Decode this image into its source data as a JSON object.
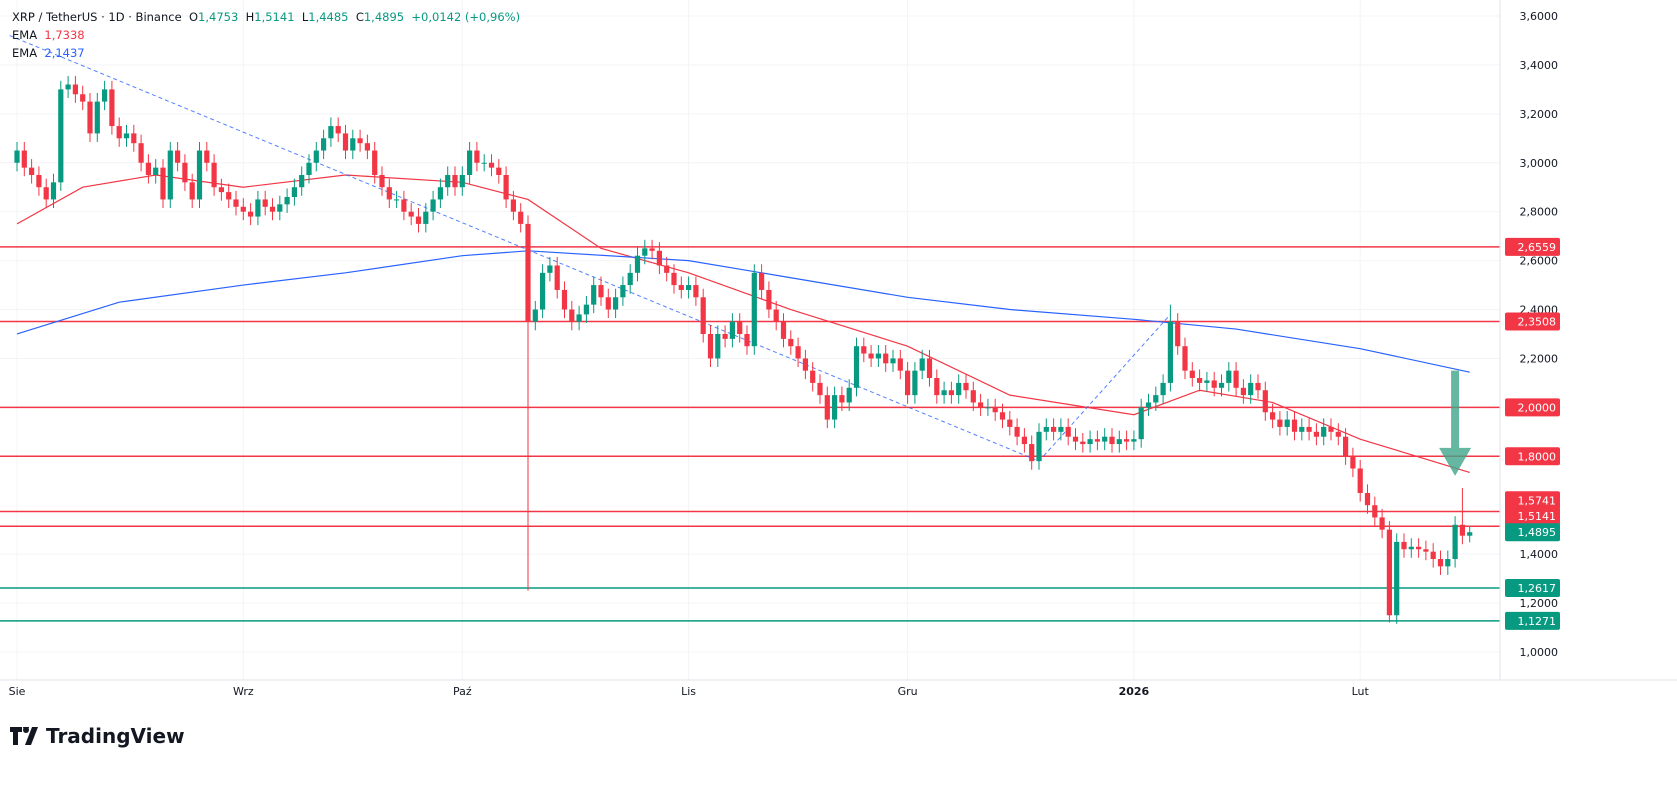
{
  "header": {
    "symbol": "XRP / TetherUS · 1D · Binance",
    "o_label": "O",
    "o": "1,4753",
    "h_label": "H",
    "h": "1,5141",
    "l_label": "L",
    "l": "1,4485",
    "c_label": "C",
    "c": "1,4895",
    "change": "+0,0142 (+0,96%)",
    "ema1_label": "EMA",
    "ema1_value": "1,7338",
    "ema2_label": "EMA",
    "ema2_value": "2,1437"
  },
  "branding": {
    "logo_text": "TradingView"
  },
  "colors": {
    "up": "#089981",
    "down": "#f23645",
    "ema_fast": "#f23645",
    "ema_slow": "#2962ff",
    "resistance": "#f23645",
    "support": "#089981",
    "trendline": "#2962ff",
    "arrow": "#3fa58a"
  },
  "chart_data": {
    "type": "candlestick",
    "start_date": "2025-08-01",
    "ylim": [
      1.0,
      3.6
    ],
    "y_ticks": [
      "3,6000",
      "3,4000",
      "3,2000",
      "3,0000",
      "2,8000",
      "2,6000",
      "2,4000",
      "2,2000",
      "1,4000",
      "1,2000",
      "1,0000"
    ],
    "y_tick_values": [
      3.6,
      3.4,
      3.2,
      3.0,
      2.8,
      2.6,
      2.4,
      2.2,
      1.4,
      1.2,
      1.0
    ],
    "x_ticks": [
      {
        "label": "Sie",
        "date": "2025-08-01"
      },
      {
        "label": "Wrz",
        "date": "2025-09-01"
      },
      {
        "label": "Paź",
        "date": "2025-10-01"
      },
      {
        "label": "Lis",
        "date": "2025-11-01"
      },
      {
        "label": "Gru",
        "date": "2025-12-01"
      },
      {
        "label": "2026",
        "date": "2026-01-01"
      },
      {
        "label": "Lut",
        "date": "2026-02-01"
      }
    ],
    "first_open": 3.0,
    "closes": [
      3.05,
      2.98,
      2.95,
      2.9,
      2.85,
      2.92,
      3.3,
      3.32,
      3.28,
      3.25,
      3.12,
      3.25,
      3.3,
      3.15,
      3.1,
      3.12,
      3.08,
      3.0,
      2.95,
      2.98,
      2.85,
      3.05,
      3.0,
      2.92,
      2.85,
      3.05,
      3.0,
      2.9,
      2.88,
      2.85,
      2.82,
      2.8,
      2.78,
      2.85,
      2.82,
      2.8,
      2.83,
      2.86,
      2.9,
      2.95,
      3.0,
      3.05,
      3.1,
      3.15,
      3.12,
      3.05,
      3.1,
      3.08,
      3.05,
      2.95,
      2.9,
      2.85,
      2.85,
      2.8,
      2.78,
      2.75,
      2.8,
      2.85,
      2.9,
      2.95,
      2.9,
      2.95,
      3.05,
      3.0,
      3.0,
      2.98,
      2.95,
      2.85,
      2.8,
      2.75,
      2.35,
      2.4,
      2.55,
      2.58,
      2.48,
      2.4,
      2.35,
      2.38,
      2.42,
      2.5,
      2.45,
      2.4,
      2.45,
      2.5,
      2.55,
      2.62,
      2.65,
      2.64,
      2.58,
      2.55,
      2.5,
      2.48,
      2.5,
      2.45,
      2.3,
      2.2,
      2.3,
      2.28,
      2.35,
      2.3,
      2.25,
      2.55,
      2.48,
      2.4,
      2.35,
      2.28,
      2.25,
      2.2,
      2.15,
      2.1,
      2.05,
      1.95,
      2.05,
      2.02,
      2.08,
      2.25,
      2.22,
      2.2,
      2.22,
      2.18,
      2.2,
      2.15,
      2.05,
      2.15,
      2.2,
      2.12,
      2.05,
      2.07,
      2.05,
      2.1,
      2.07,
      2.02,
      2.0,
      2.0,
      1.98,
      1.95,
      1.92,
      1.88,
      1.85,
      1.78,
      1.9,
      1.92,
      1.9,
      1.92,
      1.88,
      1.86,
      1.85,
      1.87,
      1.86,
      1.88,
      1.85,
      1.87,
      1.86,
      1.87,
      2.0,
      2.02,
      2.05,
      2.1,
      2.35,
      2.25,
      2.15,
      2.12,
      2.1,
      2.11,
      2.08,
      2.1,
      2.15,
      2.08,
      2.05,
      2.1,
      2.07,
      1.98,
      1.95,
      1.92,
      1.95,
      1.9,
      1.92,
      1.9,
      1.88,
      1.92,
      1.9,
      1.88,
      1.8,
      1.75,
      1.65,
      1.6,
      1.55,
      1.5,
      1.15,
      1.45,
      1.42,
      1.43,
      1.42,
      1.41,
      1.38,
      1.35,
      1.38,
      1.52,
      1.4753,
      1.4895
    ],
    "wick_extremes": [
      {
        "date": "2025-10-10",
        "low": 1.25
      },
      {
        "date": "2026-01-06",
        "high": 2.42
      },
      {
        "date": "2026-02-05",
        "low": 1.12
      },
      {
        "date": "2026-02-15",
        "high": 1.67
      },
      {
        "date": "2026-02-16",
        "high": 1.5141,
        "low": 1.4485
      }
    ],
    "ema_fast": [
      [
        "2025-08-01",
        2.75
      ],
      [
        "2025-08-10",
        2.9
      ],
      [
        "2025-08-20",
        2.95
      ],
      [
        "2025-09-01",
        2.9
      ],
      [
        "2025-09-15",
        2.95
      ],
      [
        "2025-10-01",
        2.92
      ],
      [
        "2025-10-10",
        2.85
      ],
      [
        "2025-10-20",
        2.65
      ],
      [
        "2025-11-01",
        2.55
      ],
      [
        "2025-11-15",
        2.4
      ],
      [
        "2025-12-01",
        2.25
      ],
      [
        "2025-12-15",
        2.05
      ],
      [
        "2026-01-01",
        1.97
      ],
      [
        "2026-01-10",
        2.07
      ],
      [
        "2026-01-20",
        2.02
      ],
      [
        "2026-02-01",
        1.87
      ],
      [
        "2026-02-16",
        1.7338
      ]
    ],
    "ema_slow": [
      [
        "2025-08-01",
        2.3
      ],
      [
        "2025-08-15",
        2.43
      ],
      [
        "2025-09-01",
        2.5
      ],
      [
        "2025-09-15",
        2.55
      ],
      [
        "2025-10-01",
        2.62
      ],
      [
        "2025-10-10",
        2.64
      ],
      [
        "2025-11-01",
        2.6
      ],
      [
        "2025-11-15",
        2.53
      ],
      [
        "2025-12-01",
        2.45
      ],
      [
        "2025-12-15",
        2.4
      ],
      [
        "2026-01-01",
        2.36
      ],
      [
        "2026-01-15",
        2.32
      ],
      [
        "2026-02-01",
        2.24
      ],
      [
        "2026-02-16",
        2.1437
      ]
    ],
    "trendlines": [
      {
        "from": [
          "2025-07-31",
          3.52
        ],
        "to": [
          "2025-12-19",
          1.78
        ]
      },
      {
        "from": [
          "2025-12-19",
          1.78
        ],
        "to": [
          "2026-01-06",
          2.38
        ]
      }
    ],
    "levels": [
      {
        "value": 2.6559,
        "label": "2,6559",
        "kind": "resistance"
      },
      {
        "value": 2.3508,
        "label": "2,3508",
        "kind": "resistance"
      },
      {
        "value": 2.0,
        "label": "2,0000",
        "kind": "resistance"
      },
      {
        "value": 1.8,
        "label": "1,8000",
        "kind": "resistance"
      },
      {
        "value": 1.5741,
        "label": "1,5741",
        "kind": "resistance"
      },
      {
        "value": 1.5141,
        "label": "1,5141",
        "kind": "resistance"
      },
      {
        "value": 1.2617,
        "label": "1,2617",
        "kind": "support"
      },
      {
        "value": 1.1271,
        "label": "1,1271",
        "kind": "support"
      }
    ],
    "last_price": {
      "value": 1.4895,
      "label": "1,4895"
    },
    "arrow": {
      "date": "2026-02-14",
      "from": 2.15,
      "to": 1.72,
      "direction": "down"
    }
  }
}
